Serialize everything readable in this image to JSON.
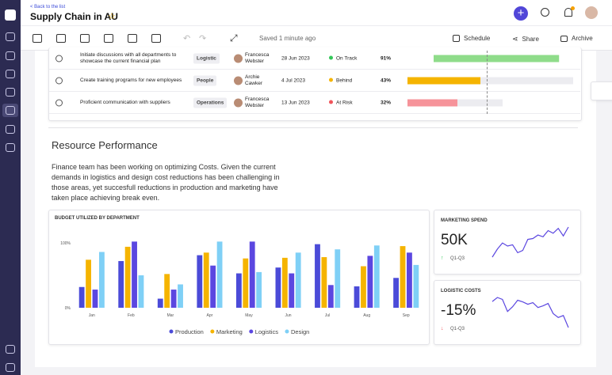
{
  "header": {
    "back_link": "< Back to the list",
    "title": "Supply Chain in AU"
  },
  "toolbar": {
    "status": "Saved 1 minute ago",
    "schedule": "Schedule",
    "share": "Share",
    "archive": "Archive"
  },
  "table": {
    "rows": [
      {
        "task": "Initiate discussions with all departments to showcase the current financial plan",
        "tag": "Logistic",
        "owner": "Francesca Webster",
        "date": "28 Jun 2023",
        "status": "On Track",
        "progress": "91%"
      },
      {
        "task": "Create training programs for new employees",
        "tag": "People",
        "owner": "Archie Cawker",
        "date": "4 Jul 2023",
        "status": "Behind",
        "progress": "43%"
      },
      {
        "task": "Proficient communication with suppliers",
        "tag": "Operations",
        "owner": "Francesca Webster",
        "date": "13 Jun 2023",
        "status": "At Risk",
        "progress": "32%"
      }
    ]
  },
  "section": {
    "title": "Resource Performance",
    "text": "Finance team has been working on optimizing Costs. Given the current demands in logistics and design cost reductions has been challenging in those areas, yet succesfull reductions in production and marketing have taken place achieving break even."
  },
  "chart_data": {
    "type": "bar",
    "title": "BUDGET UTILIZED BY DEPARTMENT",
    "categories": [
      "Jan",
      "Feb",
      "Mar",
      "Apr",
      "May",
      "Jun",
      "Jul",
      "Aug",
      "Sep"
    ],
    "series": [
      {
        "name": "Production",
        "color": "#4b4bd8",
        "values": [
          32,
          72,
          14,
          81,
          53,
          62,
          98,
          33,
          46
        ]
      },
      {
        "name": "Marketing",
        "color": "#f5b400",
        "values": [
          74,
          94,
          52,
          85,
          76,
          77,
          78,
          64,
          95
        ]
      },
      {
        "name": "Logistics",
        "color": "#5b47e0",
        "values": [
          28,
          102,
          28,
          65,
          102,
          53,
          35,
          80,
          85
        ]
      },
      {
        "name": "Design",
        "color": "#7fd0f6",
        "values": [
          86,
          50,
          36,
          102,
          55,
          85,
          90,
          96,
          66
        ]
      }
    ],
    "ylim": [
      0,
      100
    ],
    "yticks": [
      {
        "value": 0,
        "label": "0%"
      },
      {
        "value": 100,
        "label": "100%"
      }
    ]
  },
  "kpis": [
    {
      "title": "MARKETING SPEND",
      "value": "50K",
      "period": "Q1-Q3",
      "color": "#5b47e0",
      "values": [
        30,
        48,
        62,
        55,
        58,
        40,
        45,
        70,
        72,
        80,
        76,
        90,
        84,
        95,
        78,
        98
      ]
    },
    {
      "title": "LOGISTIC COSTS",
      "value": "-15%",
      "period": "Q1-Q3",
      "color": "#5b47e0",
      "values": [
        85,
        95,
        90,
        60,
        72,
        88,
        84,
        78,
        82,
        70,
        74,
        80,
        55,
        45,
        50,
        20
      ]
    }
  ]
}
